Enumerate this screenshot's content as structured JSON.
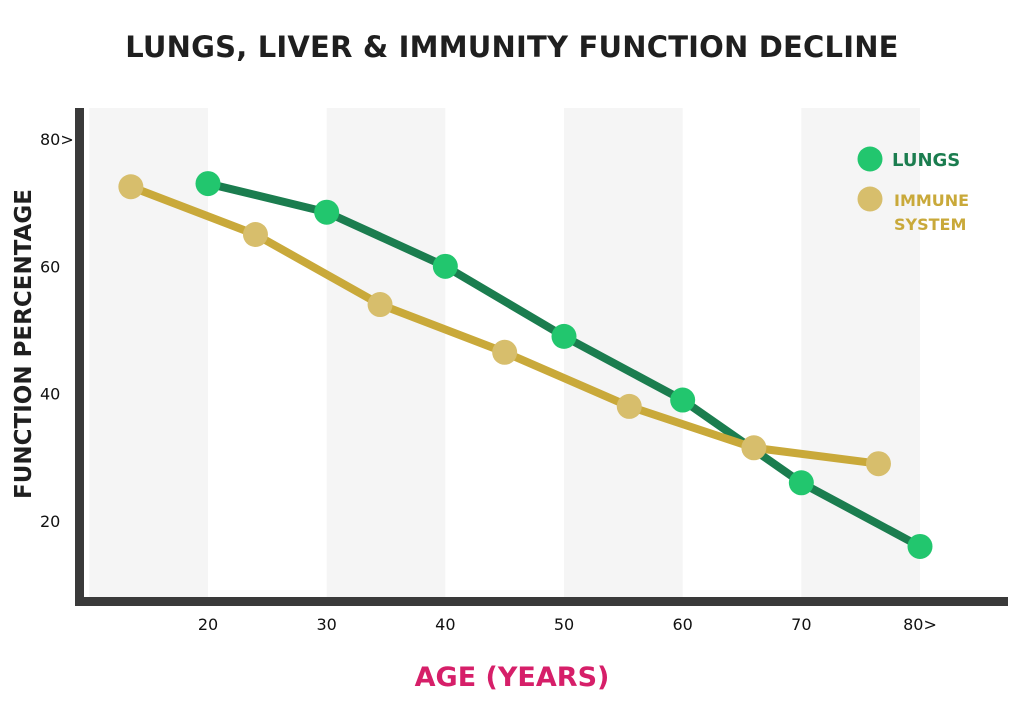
{
  "chart_data": {
    "type": "line",
    "title": "LUNGS, LIVER & IMMUNITY FUNCTION DECLINE",
    "xlabel": "AGE (YEARS)",
    "ylabel": "FUNCTION PERCENTAGE",
    "x_ticks": [
      "20",
      "30",
      "40",
      "50",
      "60",
      "70",
      "80>"
    ],
    "y_ticks": [
      "20",
      "40",
      "60",
      "80>"
    ],
    "xlim": [
      10,
      88
    ],
    "ylim": [
      10,
      82
    ],
    "grid": "alternating vertical bands",
    "legend_position": "top-right",
    "series": [
      {
        "name": "LUNGS",
        "color": "#1b7d4f",
        "marker_color": "#22c66e",
        "x": [
          20,
          30,
          40,
          50,
          60,
          70,
          80
        ],
        "y": [
          73,
          68.5,
          60,
          49,
          39,
          26,
          16
        ]
      },
      {
        "name": "IMMUNE SYSTEM",
        "legend_lines": [
          "IMMUNE",
          "SYSTEM"
        ],
        "color": "#c9a93a",
        "marker_color": "#d7be6c",
        "x": [
          13.5,
          24,
          34.5,
          45,
          55.5,
          66,
          76.5
        ],
        "y": [
          72.5,
          65,
          54,
          46.5,
          38,
          31.5,
          29
        ]
      }
    ]
  },
  "colors": {
    "axis": "#3a3a3a",
    "band": "#f5f5f5",
    "title": "#1f1f1f",
    "x_label": "#d61f69"
  }
}
